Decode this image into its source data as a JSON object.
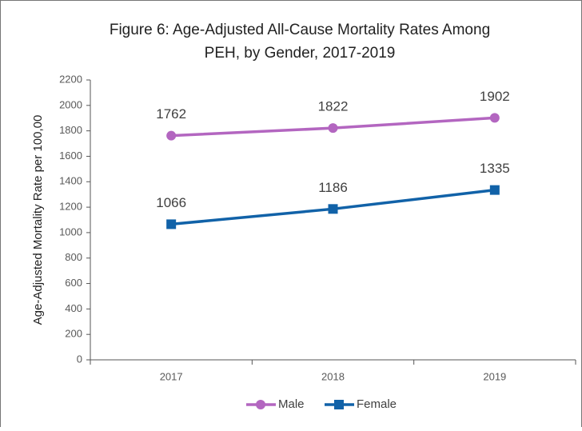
{
  "chart_data": {
    "type": "line",
    "title": [
      "Figure 6: Age-Adjusted All-Cause Mortality Rates Among",
      "PEH, by Gender, 2017-2019"
    ],
    "ylabel": "Age-Adjusted Mortality Rate per 100,00",
    "categories": [
      "2017",
      "2018",
      "2019"
    ],
    "series": [
      {
        "name": "Male",
        "color": "#b366c0",
        "marker": "circle",
        "values": [
          1762,
          1822,
          1902
        ]
      },
      {
        "name": "Female",
        "color": "#1162a8",
        "marker": "square",
        "values": [
          1066,
          1186,
          1335
        ]
      }
    ],
    "ylim": [
      0,
      2200
    ],
    "yticks": [
      0,
      200,
      400,
      600,
      800,
      1000,
      1200,
      1400,
      1600,
      1800,
      2000,
      2200
    ],
    "grid": false,
    "legend": "bottom"
  }
}
